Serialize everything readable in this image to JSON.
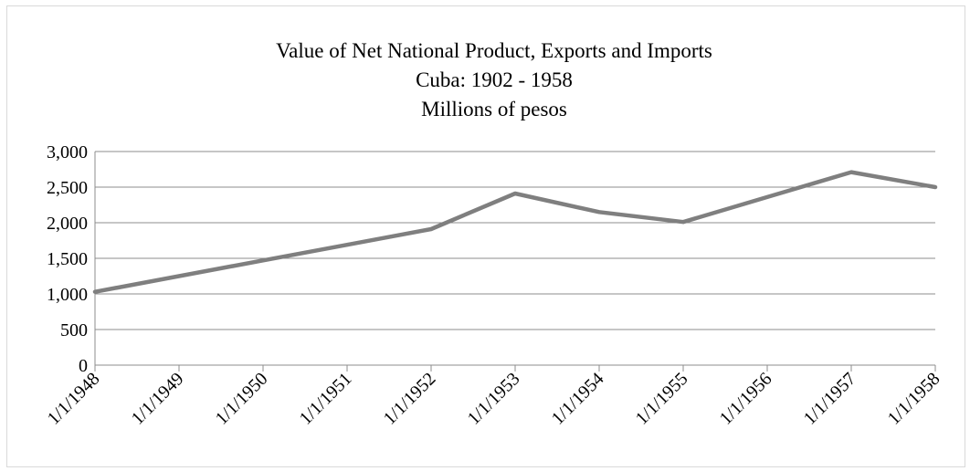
{
  "chart_data": {
    "type": "line",
    "title": "Value of Net National Product, Exports and Imports",
    "subtitle": "Cuba: 1902 - 1958",
    "unit_line": "Millions of pesos",
    "xlabel": "",
    "ylabel": "",
    "ylim": [
      0,
      3000
    ],
    "yticks": [
      0,
      500,
      1000,
      1500,
      2000,
      2500,
      3000
    ],
    "ytick_labels": [
      "0",
      "500",
      "1,000",
      "1,500",
      "2,000",
      "2,500",
      "3,000"
    ],
    "x": [
      "1/1/1948",
      "1/1/1949",
      "1/1/1950",
      "1/1/1951",
      "1/1/1952",
      "1/1/1953",
      "1/1/1954",
      "1/1/1955",
      "1/1/1956",
      "1/1/1957",
      "1/1/1958"
    ],
    "grid": true,
    "legend": "none",
    "series": [
      {
        "color": "#7f7f7f",
        "values": [
          1030,
          1250,
          1470,
          1690,
          1910,
          2410,
          2150,
          2010,
          2360,
          2710,
          2500
        ]
      }
    ]
  }
}
